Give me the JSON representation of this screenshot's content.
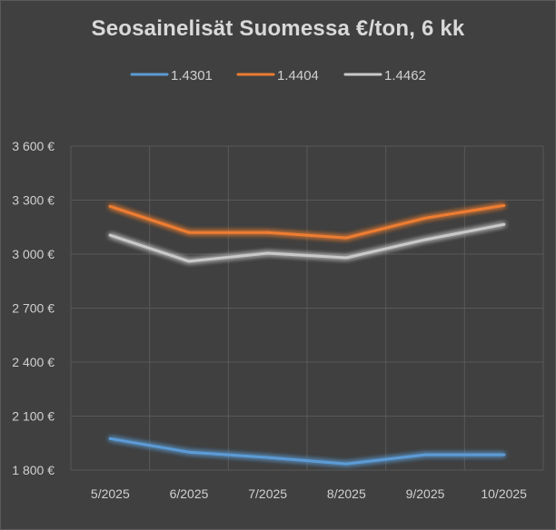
{
  "chart_data": {
    "type": "line",
    "title": "Seosainelisät Suomessa €/ton, 6 kk",
    "x": [
      "5/2025",
      "6/2025",
      "7/2025",
      "8/2025",
      "9/2025",
      "10/2025"
    ],
    "y_ticks": [
      "1 800 €",
      "2 100 €",
      "2 400 €",
      "2 700 €",
      "3 000 €",
      "3 300 €",
      "3 600 €"
    ],
    "y_tick_values": [
      1800,
      2100,
      2400,
      2700,
      3000,
      3300,
      3600
    ],
    "ylim": [
      1800,
      3600
    ],
    "grid": true,
    "legend_position": "top",
    "series": [
      {
        "name": "1.4301",
        "color": "#5b9bd5",
        "values": [
          1975,
          1900,
          1870,
          1835,
          1885,
          1885
        ]
      },
      {
        "name": "1.4404",
        "color": "#ed7d31",
        "values": [
          3265,
          3120,
          3120,
          3090,
          3200,
          3270
        ]
      },
      {
        "name": "1.4462",
        "color": "#c9c9c9",
        "values": [
          3105,
          2960,
          3005,
          2980,
          3080,
          3165
        ]
      }
    ]
  }
}
